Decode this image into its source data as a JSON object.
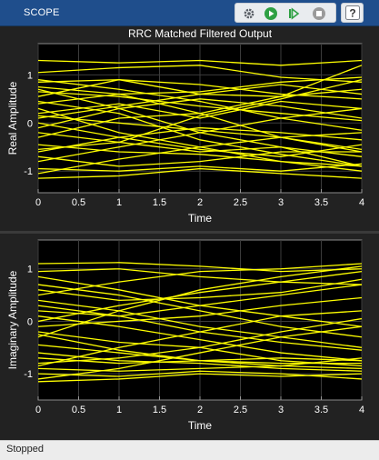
{
  "toolbar": {
    "tab_label": "SCOPE",
    "icons": [
      "settings-icon",
      "run-icon",
      "step-forward-icon",
      "stop-icon",
      "help-icon"
    ],
    "colors": {
      "toolbar_bg": "#1f4e8c",
      "run_green": "#2ea043",
      "stop_gray": "#9a9a9a"
    }
  },
  "status": {
    "text": "Stopped"
  },
  "chart_data": [
    {
      "type": "line",
      "title": "RRC Matched Filtered Output",
      "xlabel": "Time",
      "ylabel": "Real Amplitude",
      "xlim": [
        0,
        4
      ],
      "ylim": [
        -1.45,
        1.65
      ],
      "xticks": [
        "0",
        "0.5",
        "1",
        "1.5",
        "2",
        "2.5",
        "3",
        "3.5",
        "4"
      ],
      "yticks": [
        "-1",
        "0",
        "1"
      ],
      "grid": true,
      "line_color": "#ffff00",
      "x": [
        0,
        1,
        2,
        3,
        4
      ],
      "series": [
        {
          "values": [
            1.3,
            1.25,
            1.3,
            1.2,
            1.3
          ]
        },
        {
          "values": [
            1.05,
            1.15,
            1.2,
            0.95,
            0.85
          ]
        },
        {
          "values": [
            0.85,
            0.9,
            0.6,
            0.55,
            1.2
          ]
        },
        {
          "values": [
            0.75,
            0.6,
            0.2,
            -0.3,
            -0.6
          ]
        },
        {
          "values": [
            0.7,
            0.3,
            -0.2,
            -0.5,
            -0.9
          ]
        },
        {
          "values": [
            0.55,
            0.9,
            0.8,
            0.6,
            0.5
          ]
        },
        {
          "values": [
            0.45,
            0.2,
            -0.35,
            -0.65,
            -0.9
          ]
        },
        {
          "values": [
            0.4,
            0.6,
            0.65,
            0.85,
            0.95
          ]
        },
        {
          "values": [
            0.3,
            -0.2,
            -0.5,
            -0.8,
            -1.0
          ]
        },
        {
          "values": [
            0.2,
            0.4,
            0.1,
            0.45,
            0.3
          ]
        },
        {
          "values": [
            0.1,
            0.35,
            0.6,
            0.8,
            0.6
          ]
        },
        {
          "values": [
            0.0,
            -0.3,
            -0.55,
            -0.7,
            -0.45
          ]
        },
        {
          "values": [
            -0.1,
            0.3,
            0.5,
            0.35,
            0.1
          ]
        },
        {
          "values": [
            -0.2,
            -0.4,
            -0.6,
            -0.5,
            -0.7
          ]
        },
        {
          "values": [
            -0.3,
            0.1,
            0.2,
            0.55,
            0.7
          ]
        },
        {
          "values": [
            -0.45,
            -0.6,
            -0.65,
            -0.8,
            -0.9
          ]
        },
        {
          "values": [
            -0.55,
            -0.4,
            0.15,
            0.5,
            0.9
          ]
        },
        {
          "values": [
            -0.7,
            -0.9,
            -0.8,
            -0.6,
            -0.6
          ]
        },
        {
          "values": [
            -0.8,
            -0.5,
            -0.2,
            0.1,
            0.3
          ]
        },
        {
          "values": [
            -0.95,
            -1.0,
            -0.9,
            -1.0,
            -0.85
          ]
        },
        {
          "values": [
            -1.05,
            -0.75,
            -0.5,
            -0.3,
            -0.2
          ]
        },
        {
          "values": [
            -1.15,
            -1.1,
            -0.95,
            -1.05,
            -1.15
          ]
        },
        {
          "values": [
            0.65,
            0.55,
            0.35,
            0.2,
            0.05
          ]
        },
        {
          "values": [
            0.15,
            0.0,
            -0.15,
            -0.3,
            -0.55
          ]
        },
        {
          "values": [
            -0.6,
            -0.3,
            -0.1,
            -0.2,
            -0.35
          ]
        },
        {
          "values": [
            0.9,
            0.7,
            0.45,
            0.1,
            -0.15
          ]
        }
      ]
    },
    {
      "type": "line",
      "title": "",
      "xlabel": "Time",
      "ylabel": "Imaginary Amplitude",
      "xlim": [
        0,
        4
      ],
      "ylim": [
        -1.5,
        1.55
      ],
      "xticks": [
        "0",
        "0.5",
        "1",
        "1.5",
        "2",
        "2.5",
        "3",
        "3.5",
        "4"
      ],
      "yticks": [
        "-1",
        "0",
        "1"
      ],
      "grid": true,
      "line_color": "#ffff00",
      "x": [
        0,
        1,
        2,
        3,
        4
      ],
      "series": [
        {
          "values": [
            1.1,
            1.12,
            1.05,
            0.95,
            1.0
          ]
        },
        {
          "values": [
            0.95,
            1.0,
            0.85,
            0.75,
            0.7
          ]
        },
        {
          "values": [
            0.85,
            0.6,
            0.3,
            0.1,
            -0.1
          ]
        },
        {
          "values": [
            0.7,
            0.5,
            0.2,
            -0.1,
            -0.3
          ]
        },
        {
          "values": [
            0.6,
            0.4,
            0.45,
            0.55,
            0.8
          ]
        },
        {
          "values": [
            0.4,
            0.2,
            -0.1,
            -0.3,
            -0.5
          ]
        },
        {
          "values": [
            0.2,
            0.1,
            0.3,
            0.5,
            0.7
          ]
        },
        {
          "values": [
            0.1,
            -0.1,
            -0.35,
            -0.6,
            -0.75
          ]
        },
        {
          "values": [
            0.0,
            0.3,
            0.55,
            0.75,
            0.95
          ]
        },
        {
          "values": [
            -0.1,
            0.0,
            0.1,
            0.3,
            0.45
          ]
        },
        {
          "values": [
            -0.2,
            -0.4,
            -0.5,
            -0.75,
            -0.85
          ]
        },
        {
          "values": [
            -0.3,
            0.2,
            0.6,
            0.85,
            1.05
          ]
        },
        {
          "values": [
            -0.45,
            -0.6,
            -0.75,
            -0.8,
            -0.8
          ]
        },
        {
          "values": [
            -0.6,
            -0.75,
            -0.8,
            -0.9,
            -0.95
          ]
        },
        {
          "values": [
            -0.7,
            -0.8,
            -0.75,
            -0.7,
            -0.75
          ]
        },
        {
          "values": [
            -0.8,
            -0.7,
            -0.5,
            -0.2,
            0.05
          ]
        },
        {
          "values": [
            -0.9,
            -0.95,
            -0.9,
            -0.85,
            -0.9
          ]
        },
        {
          "values": [
            -1.0,
            -1.05,
            -0.95,
            -1.0,
            -1.1
          ]
        },
        {
          "values": [
            -1.1,
            -0.9,
            -0.6,
            -0.3,
            -0.1
          ]
        },
        {
          "values": [
            -1.15,
            -1.1,
            -1.0,
            -1.05,
            -1.0
          ]
        },
        {
          "values": [
            -0.85,
            -0.5,
            -0.2,
            0.1,
            0.2
          ]
        },
        {
          "values": [
            0.3,
            0.1,
            -0.2,
            -0.4,
            -0.55
          ]
        },
        {
          "values": [
            -0.25,
            -0.55,
            -0.75,
            -0.85,
            -0.7
          ]
        },
        {
          "values": [
            0.5,
            0.75,
            0.95,
            1.0,
            1.1
          ]
        }
      ]
    }
  ]
}
